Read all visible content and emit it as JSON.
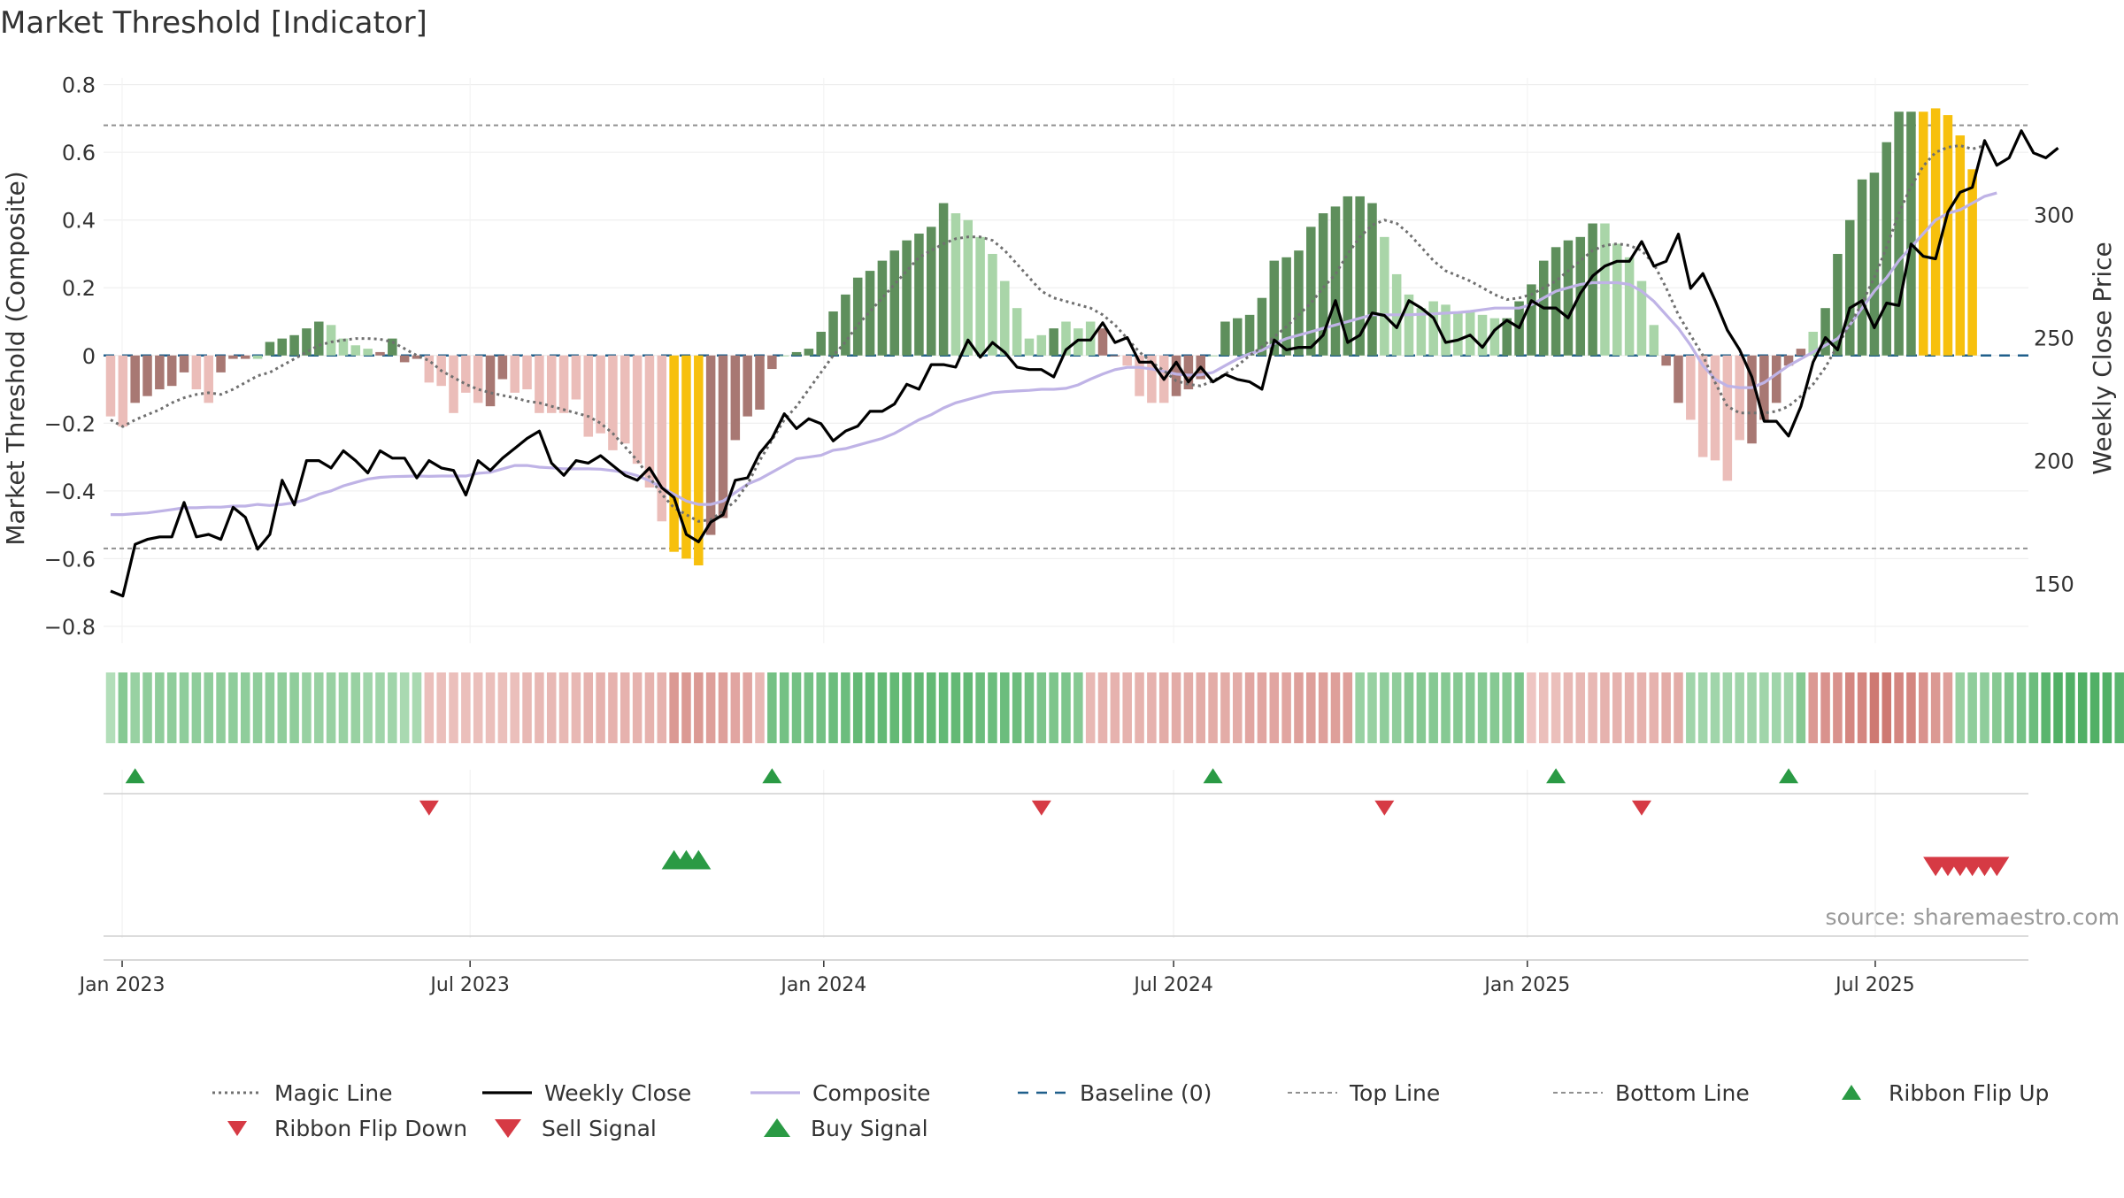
{
  "title": "Market Threshold [Indicator]",
  "source_note": "source: sharemaestro.com",
  "colors": {
    "bar_dark_green": "#5e8f5c",
    "bar_light_green": "#a9d5a8",
    "bar_dark_red": "#a87873",
    "bar_light_red": "#ebbdb9",
    "bar_extreme": "#f7c00d",
    "weekly_close": "#000000",
    "composite": "#bfb3e6",
    "magic_line": "#707070",
    "baseline": "#1f5f8b",
    "threshold_line": "#909090",
    "buy": "#2a9a44",
    "sell": "#d63a44"
  },
  "chart_data": {
    "type": "bar",
    "title": "Market Threshold [Indicator]",
    "ylabel": "Market Threshold (Composite)",
    "y2label": "Weekly Close Price",
    "ylim": [
      -0.85,
      0.82
    ],
    "y2lim": [
      125.8,
      355.5
    ],
    "yticks": [
      0.8,
      0.6,
      0.4,
      0.2,
      0,
      -0.2,
      -0.4,
      -0.6,
      -0.8
    ],
    "ytick_labels": [
      "0.8",
      "0.6",
      "0.4",
      "0.2",
      "0",
      "−0.2",
      "−0.4",
      "−0.6",
      "−0.8"
    ],
    "y2ticks": [
      150,
      200,
      250,
      300
    ],
    "y2tick_labels": [
      "150",
      "200",
      "250",
      "300"
    ],
    "x_start": "2022-12-26",
    "x_end": "2025-09-15",
    "xticks": [
      "2023-01-01",
      "2023-07-01",
      "2024-01-01",
      "2024-07-01",
      "2025-01-01",
      "2025-07-01"
    ],
    "xtick_labels": [
      "Jan 2023",
      "Jul 2023",
      "Jan 2024",
      "Jul 2024",
      "Jan 2025",
      "Jul 2025"
    ],
    "top_line": 0.68,
    "bottom_line": -0.57,
    "grid": true,
    "legend_position": "bottom",
    "series": [
      {
        "name": "Composite",
        "values": [
          -0.18,
          -0.21,
          -0.14,
          -0.12,
          -0.1,
          -0.09,
          -0.05,
          -0.1,
          -0.14,
          -0.05,
          -0.01,
          -0.01,
          -0.01,
          0.04,
          0.05,
          0.06,
          0.08,
          0.1,
          0.09,
          0.05,
          0.03,
          0.02,
          0.01,
          0.05,
          -0.02,
          -0.01,
          -0.08,
          -0.09,
          -0.17,
          -0.11,
          -0.14,
          -0.15,
          -0.07,
          -0.11,
          -0.1,
          -0.17,
          -0.17,
          -0.17,
          -0.13,
          -0.24,
          -0.23,
          -0.28,
          -0.26,
          -0.32,
          -0.39,
          -0.49,
          -0.58,
          -0.6,
          -0.62,
          -0.53,
          -0.48,
          -0.25,
          -0.18,
          -0.16,
          -0.04,
          0.0,
          0.01,
          0.02,
          0.07,
          0.13,
          0.18,
          0.23,
          0.25,
          0.28,
          0.31,
          0.34,
          0.36,
          0.38,
          0.45,
          0.42,
          0.4,
          0.35,
          0.3,
          0.22,
          0.14,
          0.05,
          0.06,
          0.08,
          0.1,
          0.08,
          0.1,
          0.08,
          0.0,
          -0.03,
          -0.12,
          -0.14,
          -0.14,
          -0.12,
          -0.1,
          -0.07,
          0.0,
          0.1,
          0.11,
          0.12,
          0.17,
          0.28,
          0.29,
          0.31,
          0.38,
          0.42,
          0.44,
          0.47,
          0.47,
          0.45,
          0.35,
          0.24,
          0.18,
          0.14,
          0.16,
          0.15,
          0.13,
          0.13,
          0.12,
          0.11,
          0.11,
          0.16,
          0.21,
          0.28,
          0.32,
          0.34,
          0.35,
          0.39,
          0.39,
          0.33,
          0.29,
          0.22,
          0.09,
          -0.03,
          -0.14,
          -0.19,
          -0.3,
          -0.31,
          -0.37,
          -0.25,
          -0.26,
          -0.19,
          -0.14,
          -0.03,
          0.02,
          0.07,
          0.14,
          0.3,
          0.4,
          0.52,
          0.54,
          0.63,
          0.72,
          0.72,
          0.72,
          0.73,
          0.71,
          0.65,
          0.55
        ]
      },
      {
        "name": "Weekly Close",
        "values": [
          147,
          145,
          166,
          168,
          169,
          169,
          183,
          169,
          170,
          168,
          181,
          177,
          164,
          170,
          192,
          182,
          200,
          200,
          197,
          204,
          200,
          195,
          204,
          201,
          201,
          193,
          200,
          197,
          196,
          186,
          200,
          196,
          201,
          205,
          209,
          212,
          199,
          194,
          200,
          199,
          202,
          198,
          194,
          192,
          197,
          189,
          185,
          170,
          167,
          175,
          178,
          192,
          193,
          203,
          209,
          219,
          213,
          217,
          215,
          208,
          212,
          214,
          220,
          220,
          223,
          231,
          229,
          239,
          239,
          238,
          249,
          242,
          248,
          244,
          238,
          237,
          237,
          234,
          245,
          249,
          249,
          256,
          248,
          250,
          240,
          240,
          233,
          240,
          232,
          238,
          232,
          235,
          233,
          232,
          229,
          249,
          245,
          246,
          246,
          251,
          265,
          248,
          251,
          260,
          259,
          254,
          265,
          262,
          258,
          248,
          249,
          251,
          246,
          253,
          257,
          254,
          265,
          262,
          262,
          258,
          268,
          275,
          279,
          281,
          281,
          289,
          279,
          281,
          292,
          270,
          276,
          265,
          253,
          245,
          234,
          216,
          216,
          210,
          222,
          240,
          250,
          245,
          262,
          265,
          254,
          264,
          263,
          288,
          283,
          282,
          301,
          309,
          311,
          330,
          320,
          323,
          334,
          325,
          323,
          327
        ]
      },
      {
        "name": "Composite",
        "values": [
          -0.47,
          -0.47,
          -0.467,
          -0.465,
          -0.46,
          -0.455,
          -0.45,
          -0.45,
          -0.448,
          -0.448,
          -0.445,
          -0.445,
          -0.44,
          -0.443,
          -0.44,
          -0.435,
          -0.425,
          -0.41,
          -0.4,
          -0.385,
          -0.375,
          -0.365,
          -0.36,
          -0.358,
          -0.357,
          -0.356,
          -0.357,
          -0.356,
          -0.356,
          -0.356,
          -0.348,
          -0.345,
          -0.335,
          -0.325,
          -0.325,
          -0.33,
          -0.332,
          -0.335,
          -0.335,
          -0.335,
          -0.336,
          -0.34,
          -0.345,
          -0.355,
          -0.37,
          -0.39,
          -0.41,
          -0.43,
          -0.44,
          -0.44,
          -0.43,
          -0.405,
          -0.38,
          -0.365,
          -0.345,
          -0.325,
          -0.305,
          -0.3,
          -0.295,
          -0.28,
          -0.275,
          -0.265,
          -0.255,
          -0.245,
          -0.23,
          -0.21,
          -0.19,
          -0.175,
          -0.155,
          -0.14,
          -0.13,
          -0.12,
          -0.11,
          -0.107,
          -0.105,
          -0.103,
          -0.1,
          -0.1,
          -0.097,
          -0.087,
          -0.07,
          -0.055,
          -0.042,
          -0.035,
          -0.035,
          -0.04,
          -0.047,
          -0.055,
          -0.058,
          -0.057,
          -0.05,
          -0.03,
          -0.01,
          0.005,
          0.015,
          0.035,
          0.05,
          0.06,
          0.07,
          0.08,
          0.09,
          0.1,
          0.11,
          0.12,
          0.12,
          0.12,
          0.12,
          0.122,
          0.123,
          0.125,
          0.127,
          0.13,
          0.135,
          0.14,
          0.14,
          0.14,
          0.15,
          0.17,
          0.19,
          0.2,
          0.21,
          0.215,
          0.215,
          0.215,
          0.21,
          0.19,
          0.16,
          0.12,
          0.08,
          0.03,
          -0.03,
          -0.07,
          -0.09,
          -0.095,
          -0.095,
          -0.08,
          -0.055,
          -0.03,
          -0.01,
          0.01,
          0.03,
          0.05,
          0.09,
          0.14,
          0.19,
          0.23,
          0.28,
          0.32,
          0.36,
          0.4,
          0.42,
          0.43,
          0.45,
          0.47,
          0.48
        ]
      },
      {
        "name": "Magic Line",
        "values": [
          -0.19,
          -0.21,
          -0.19,
          -0.175,
          -0.16,
          -0.14,
          -0.125,
          -0.115,
          -0.11,
          -0.115,
          -0.1,
          -0.08,
          -0.06,
          -0.05,
          -0.03,
          -0.01,
          0.01,
          0.03,
          0.04,
          0.045,
          0.05,
          0.05,
          0.048,
          0.04,
          0.02,
          0.0,
          -0.015,
          -0.045,
          -0.065,
          -0.085,
          -0.1,
          -0.11,
          -0.118,
          -0.125,
          -0.135,
          -0.14,
          -0.15,
          -0.16,
          -0.17,
          -0.18,
          -0.2,
          -0.23,
          -0.27,
          -0.31,
          -0.36,
          -0.41,
          -0.45,
          -0.47,
          -0.49,
          -0.485,
          -0.46,
          -0.43,
          -0.38,
          -0.31,
          -0.25,
          -0.19,
          -0.15,
          -0.1,
          -0.05,
          0.0,
          0.04,
          0.09,
          0.13,
          0.17,
          0.21,
          0.25,
          0.29,
          0.31,
          0.33,
          0.345,
          0.35,
          0.35,
          0.34,
          0.31,
          0.27,
          0.23,
          0.19,
          0.17,
          0.16,
          0.15,
          0.14,
          0.12,
          0.09,
          0.05,
          0.01,
          -0.02,
          -0.045,
          -0.075,
          -0.085,
          -0.09,
          -0.075,
          -0.055,
          -0.03,
          0.0,
          0.025,
          0.055,
          0.085,
          0.12,
          0.155,
          0.2,
          0.24,
          0.3,
          0.35,
          0.385,
          0.4,
          0.39,
          0.36,
          0.32,
          0.28,
          0.25,
          0.235,
          0.22,
          0.2,
          0.18,
          0.165,
          0.17,
          0.18,
          0.2,
          0.22,
          0.25,
          0.28,
          0.31,
          0.325,
          0.33,
          0.325,
          0.31,
          0.27,
          0.2,
          0.12,
          0.06,
          0.0,
          -0.08,
          -0.15,
          -0.17,
          -0.17,
          -0.17,
          -0.165,
          -0.15,
          -0.12,
          -0.085,
          -0.035,
          0.03,
          0.09,
          0.155,
          0.23,
          0.32,
          0.42,
          0.5,
          0.56,
          0.6,
          0.615,
          0.62,
          0.61,
          0.62
        ]
      },
      {
        "name": "Baseline (0)",
        "value": 0
      },
      {
        "name": "Top Line",
        "value": 0.68
      },
      {
        "name": "Bottom Line",
        "value": -0.57
      }
    ],
    "bar_categories": [
      0,
      0,
      1,
      1,
      1,
      1,
      1,
      0,
      0,
      1,
      1,
      1,
      3,
      2,
      2,
      2,
      2,
      2,
      3,
      3,
      3,
      3,
      1,
      2,
      1,
      1,
      0,
      0,
      0,
      0,
      0,
      1,
      1,
      0,
      0,
      0,
      0,
      0,
      0,
      0,
      0,
      0,
      0,
      0,
      0,
      0,
      4,
      4,
      4,
      1,
      1,
      1,
      1,
      1,
      1,
      3,
      2,
      2,
      2,
      2,
      2,
      2,
      2,
      2,
      2,
      2,
      2,
      2,
      2,
      3,
      3,
      3,
      3,
      3,
      3,
      3,
      3,
      2,
      3,
      3,
      3,
      1,
      1,
      0,
      0,
      0,
      0,
      1,
      1,
      1,
      3,
      2,
      2,
      2,
      2,
      2,
      2,
      2,
      2,
      2,
      2,
      2,
      2,
      2,
      3,
      3,
      3,
      3,
      3,
      3,
      3,
      3,
      3,
      3,
      2,
      2,
      2,
      2,
      2,
      2,
      2,
      2,
      3,
      3,
      3,
      3,
      3,
      1,
      1,
      0,
      0,
      0,
      0,
      0,
      1,
      1,
      1,
      1,
      1,
      3,
      2,
      2,
      2,
      2,
      2,
      2,
      2,
      2,
      4,
      4,
      4,
      4,
      4,
      4,
      4,
      3,
      3
    ],
    "ribbon": {
      "values": [
        0.25,
        0.5,
        0.4,
        0.45,
        0.45,
        0.45,
        0.45,
        0.45,
        0.45,
        0.45,
        0.45,
        0.45,
        0.45,
        0.45,
        0.45,
        0.45,
        0.4,
        0.4,
        0.4,
        0.4,
        0.4,
        0.35,
        0.35,
        0.35,
        0.3,
        0.3,
        -0.25,
        -0.25,
        -0.25,
        -0.25,
        -0.25,
        -0.25,
        -0.25,
        -0.25,
        -0.3,
        -0.3,
        -0.3,
        -0.3,
        -0.3,
        -0.35,
        -0.35,
        -0.35,
        -0.35,
        -0.35,
        -0.35,
        -0.35,
        -0.55,
        -0.55,
        -0.55,
        -0.5,
        -0.5,
        -0.45,
        -0.45,
        -0.3,
        0.6,
        0.6,
        0.6,
        0.6,
        0.6,
        0.65,
        0.65,
        0.7,
        0.7,
        0.7,
        0.7,
        0.7,
        0.7,
        0.7,
        0.7,
        0.7,
        0.7,
        0.65,
        0.65,
        0.65,
        0.65,
        0.6,
        0.55,
        0.55,
        0.55,
        0.5,
        -0.3,
        -0.35,
        -0.35,
        -0.35,
        -0.35,
        -0.35,
        -0.4,
        -0.4,
        -0.4,
        -0.4,
        -0.4,
        -0.4,
        -0.4,
        -0.45,
        -0.45,
        -0.45,
        -0.45,
        -0.5,
        -0.5,
        -0.5,
        -0.5,
        -0.5,
        0.4,
        0.4,
        0.45,
        0.45,
        0.5,
        0.5,
        0.5,
        0.5,
        0.5,
        0.5,
        0.5,
        0.5,
        0.5,
        0.55,
        -0.2,
        -0.25,
        -0.25,
        -0.3,
        -0.3,
        -0.3,
        -0.35,
        -0.35,
        -0.35,
        -0.35,
        -0.35,
        -0.4,
        -0.4,
        0.35,
        0.35,
        0.35,
        0.35,
        0.35,
        0.35,
        0.35,
        0.35,
        0.35,
        0.5,
        -0.55,
        -0.6,
        -0.6,
        -0.7,
        -0.7,
        -0.8,
        -0.8,
        -0.7,
        -0.7,
        -0.6,
        -0.55,
        -0.5,
        0.4,
        0.45,
        0.45,
        0.5,
        0.55,
        0.6,
        0.65,
        0.75,
        0.8,
        0.8,
        0.8,
        0.8,
        0.8,
        0.75,
        0.65
      ]
    },
    "signals": {
      "ribbon_flip_up": [
        2,
        54,
        90,
        118,
        137
      ],
      "ribbon_flip_down": [
        26,
        76,
        104,
        125
      ],
      "buy_signal": [
        46,
        47,
        48
      ],
      "sell_signal": [
        149,
        150,
        151,
        152,
        153,
        154
      ]
    }
  },
  "legend": {
    "items": [
      {
        "label": "Magic Line",
        "symbol": "dotted",
        "color": "#707070"
      },
      {
        "label": "Weekly Close",
        "symbol": "solid",
        "color": "#000000"
      },
      {
        "label": "Composite",
        "symbol": "solid-light",
        "color": "#bfb3e6"
      },
      {
        "label": "Baseline (0)",
        "symbol": "dashed",
        "color": "#1f5f8b"
      },
      {
        "label": "Top Line",
        "symbol": "dotted-light",
        "color": "#909090"
      },
      {
        "label": "Bottom Line",
        "symbol": "dotted-light",
        "color": "#909090"
      },
      {
        "label": "Ribbon Flip Up",
        "symbol": "triangle-up",
        "color": "#2a9a44"
      },
      {
        "label": "Ribbon Flip Down",
        "symbol": "triangle-down",
        "color": "#d63a44"
      },
      {
        "label": "Sell Signal",
        "symbol": "triangle-down-large",
        "color": "#d63a44"
      },
      {
        "label": "Buy Signal",
        "symbol": "triangle-up-large",
        "color": "#2a9a44"
      }
    ]
  }
}
